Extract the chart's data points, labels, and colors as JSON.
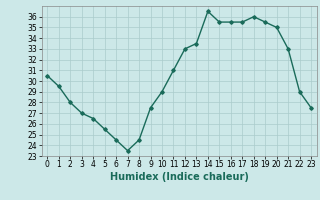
{
  "x": [
    0,
    1,
    2,
    3,
    4,
    5,
    6,
    7,
    8,
    9,
    10,
    11,
    12,
    13,
    14,
    15,
    16,
    17,
    18,
    19,
    20,
    21,
    22,
    23
  ],
  "y": [
    30.5,
    29.5,
    28,
    27,
    26.5,
    25.5,
    24.5,
    23.5,
    24.5,
    27.5,
    29,
    31,
    33,
    33.5,
    36.5,
    35.5,
    35.5,
    35.5,
    36,
    35.5,
    35,
    33,
    29,
    27.5
  ],
  "xlabel": "Humidex (Indice chaleur)",
  "bg_color": "#cce8e8",
  "line_color": "#1a6b5a",
  "marker": "D",
  "markersize": 1.8,
  "linewidth": 1.0,
  "ylim": [
    23,
    37
  ],
  "yticks": [
    23,
    24,
    25,
    26,
    27,
    28,
    29,
    30,
    31,
    32,
    33,
    34,
    35,
    36
  ],
  "xticks": [
    0,
    1,
    2,
    3,
    4,
    5,
    6,
    7,
    8,
    9,
    10,
    11,
    12,
    13,
    14,
    15,
    16,
    17,
    18,
    19,
    20,
    21,
    22,
    23
  ],
  "grid_color": "#aacccc",
  "xlabel_fontsize": 7,
  "tick_fontsize": 5.5,
  "xlabel_bold": true
}
